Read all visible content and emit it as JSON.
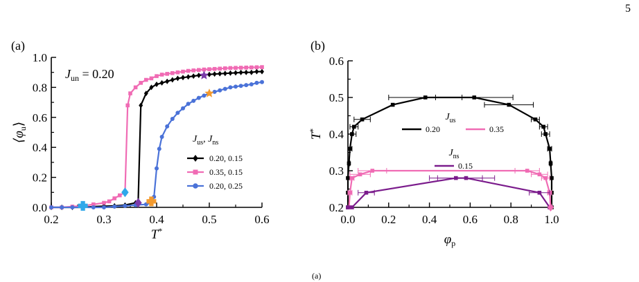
{
  "page_number": "5",
  "caption_stub": "(a)",
  "chart_data": [
    {
      "panel": "(a)",
      "type": "line",
      "annotation": "J_un = 0.20",
      "xlabel": "T*",
      "ylabel": "⟨φ_u⟩",
      "xlim": [
        0.2,
        0.6
      ],
      "ylim": [
        0.0,
        1.0
      ],
      "xticks": [
        "0.2",
        "0.3",
        "0.4",
        "0.5",
        "0.6"
      ],
      "yticks": [
        "0.0",
        "0.2",
        "0.4",
        "0.6",
        "0.8",
        "1.0"
      ],
      "legend_title": "J_us,  J_ns",
      "legend_position": "center-right",
      "grid": false,
      "series": [
        {
          "name": "0.20, 0.15",
          "color": "#000000",
          "marker": "diamond",
          "x": [
            0.2,
            0.22,
            0.24,
            0.26,
            0.28,
            0.3,
            0.32,
            0.34,
            0.36,
            0.365,
            0.37,
            0.38,
            0.39,
            0.4,
            0.41,
            0.42,
            0.43,
            0.44,
            0.45,
            0.46,
            0.47,
            0.48,
            0.49,
            0.5,
            0.51,
            0.52,
            0.53,
            0.54,
            0.55,
            0.56,
            0.57,
            0.58,
            0.59,
            0.6
          ],
          "y": [
            0.0,
            0.0,
            0.0,
            0.0,
            0.005,
            0.008,
            0.01,
            0.015,
            0.03,
            0.04,
            0.68,
            0.76,
            0.8,
            0.82,
            0.83,
            0.84,
            0.85,
            0.86,
            0.865,
            0.87,
            0.875,
            0.88,
            0.883,
            0.886,
            0.889,
            0.891,
            0.893,
            0.895,
            0.897,
            0.899,
            0.9,
            0.9,
            0.905,
            0.905
          ]
        },
        {
          "name": "0.35, 0.15",
          "color": "#f06bb4",
          "marker": "square",
          "x": [
            0.2,
            0.22,
            0.24,
            0.26,
            0.28,
            0.3,
            0.31,
            0.32,
            0.33,
            0.34,
            0.345,
            0.35,
            0.36,
            0.37,
            0.38,
            0.39,
            0.4,
            0.41,
            0.42,
            0.43,
            0.44,
            0.45,
            0.46,
            0.47,
            0.48,
            0.49,
            0.5,
            0.51,
            0.52,
            0.53,
            0.54,
            0.55,
            0.56,
            0.57,
            0.58,
            0.59,
            0.6
          ],
          "y": [
            0.0,
            0.0,
            0.005,
            0.01,
            0.02,
            0.03,
            0.04,
            0.06,
            0.08,
            0.1,
            0.68,
            0.76,
            0.8,
            0.83,
            0.85,
            0.86,
            0.875,
            0.885,
            0.89,
            0.895,
            0.9,
            0.905,
            0.91,
            0.913,
            0.916,
            0.919,
            0.921,
            0.923,
            0.925,
            0.927,
            0.929,
            0.93,
            0.931,
            0.932,
            0.933,
            0.934,
            0.935
          ]
        },
        {
          "name": "0.20, 0.25",
          "color": "#4a72d8",
          "marker": "circle",
          "x": [
            0.2,
            0.22,
            0.24,
            0.26,
            0.28,
            0.3,
            0.32,
            0.34,
            0.36,
            0.38,
            0.39,
            0.395,
            0.4,
            0.405,
            0.41,
            0.42,
            0.43,
            0.44,
            0.45,
            0.46,
            0.47,
            0.48,
            0.49,
            0.5,
            0.51,
            0.52,
            0.53,
            0.54,
            0.55,
            0.56,
            0.57,
            0.58,
            0.59,
            0.6
          ],
          "y": [
            0.0,
            0.0,
            0.0,
            0.0,
            0.0,
            0.0,
            0.005,
            0.01,
            0.015,
            0.02,
            0.03,
            0.07,
            0.26,
            0.39,
            0.47,
            0.54,
            0.59,
            0.63,
            0.66,
            0.69,
            0.71,
            0.73,
            0.745,
            0.76,
            0.77,
            0.78,
            0.79,
            0.8,
            0.805,
            0.81,
            0.815,
            0.82,
            0.83,
            0.835
          ]
        }
      ],
      "special_markers": [
        {
          "shape": "diamond",
          "color": "#2fa8ea",
          "x": 0.34,
          "y": 0.1
        },
        {
          "shape": "cross",
          "color": "#2fa8ea",
          "x": 0.26,
          "y": 0.01
        },
        {
          "shape": "diamond",
          "color": "#7a3aa8",
          "x": 0.365,
          "y": 0.03
        },
        {
          "shape": "cross",
          "color": "#f39a2e",
          "x": 0.39,
          "y": 0.04
        },
        {
          "shape": "star",
          "color": "#7a3aa8",
          "x": 0.49,
          "y": 0.88
        },
        {
          "shape": "star",
          "color": "#f39a2e",
          "x": 0.5,
          "y": 0.76
        }
      ]
    },
    {
      "panel": "(b)",
      "type": "line",
      "xlabel": "φ_p",
      "ylabel": "T*",
      "xlim": [
        0.0,
        1.0
      ],
      "ylim": [
        0.2,
        0.6
      ],
      "xticks": [
        "0.0",
        "0.2",
        "0.4",
        "0.6",
        "0.8",
        "1.0"
      ],
      "yticks": [
        "0.2",
        "0.3",
        "0.4",
        "0.5",
        "0.6"
      ],
      "legend_groups": [
        {
          "title": "J_us",
          "entries": [
            {
              "name": "0.20",
              "color": "#000000"
            },
            {
              "name": "0.35",
              "color": "#f06bb4"
            }
          ]
        },
        {
          "title": "J_ns",
          "entries": [
            {
              "name": "0.15",
              "color": "#7b1c8c"
            }
          ]
        }
      ],
      "grid": false,
      "series": [
        {
          "name": "0.20",
          "color": "#000000",
          "marker": "square",
          "points": [
            [
              0.0,
              0.2,
              0.0
            ],
            [
              0.0,
              0.24,
              0.0
            ],
            [
              0.0,
              0.28,
              0.0
            ],
            [
              0.005,
              0.32,
              0.005
            ],
            [
              0.01,
              0.36,
              0.01
            ],
            [
              0.02,
              0.4,
              0.02
            ],
            [
              0.03,
              0.42,
              0.02
            ],
            [
              0.07,
              0.44,
              0.04
            ],
            [
              0.22,
              0.48,
              0.0
            ],
            [
              0.38,
              0.5,
              0.18
            ],
            [
              0.62,
              0.5,
              0.19
            ],
            [
              0.79,
              0.48,
              0.12
            ],
            [
              0.92,
              0.44,
              0.02
            ],
            [
              0.96,
              0.42,
              0.02
            ],
            [
              0.97,
              0.4,
              0.02
            ],
            [
              0.99,
              0.36,
              0.01
            ],
            [
              0.995,
              0.32,
              0.005
            ],
            [
              1.0,
              0.28,
              0.0
            ],
            [
              1.0,
              0.24,
              0.0
            ],
            [
              1.0,
              0.2,
              0.0
            ]
          ]
        },
        {
          "name": "0.35",
          "color": "#f06bb4",
          "marker": "square",
          "points": [
            [
              0.005,
              0.2,
              0.0
            ],
            [
              0.01,
              0.24,
              0.01
            ],
            [
              0.02,
              0.28,
              0.01
            ],
            [
              0.06,
              0.29,
              0.05
            ],
            [
              0.12,
              0.3,
              0.07
            ],
            [
              0.88,
              0.3,
              0.06
            ],
            [
              0.94,
              0.29,
              0.04
            ],
            [
              0.97,
              0.28,
              0.02
            ],
            [
              0.99,
              0.24,
              0.01
            ],
            [
              0.995,
              0.2,
              0.0
            ]
          ]
        },
        {
          "name": "0.15",
          "color": "#7b1c8c",
          "marker": "square",
          "points": [
            [
              0.0,
              0.2,
              0.0
            ],
            [
              0.02,
              0.2,
              0.0
            ],
            [
              0.09,
              0.24,
              0.04
            ],
            [
              0.53,
              0.28,
              0.13
            ],
            [
              0.58,
              0.28,
              0.14
            ],
            [
              0.94,
              0.24,
              0.05
            ],
            [
              0.99,
              0.2,
              0.0
            ]
          ]
        }
      ],
      "special_markers": [
        {
          "shape": "diamond",
          "color": "#f06bb4",
          "x": 0.995,
          "y": 0.2
        }
      ]
    }
  ]
}
